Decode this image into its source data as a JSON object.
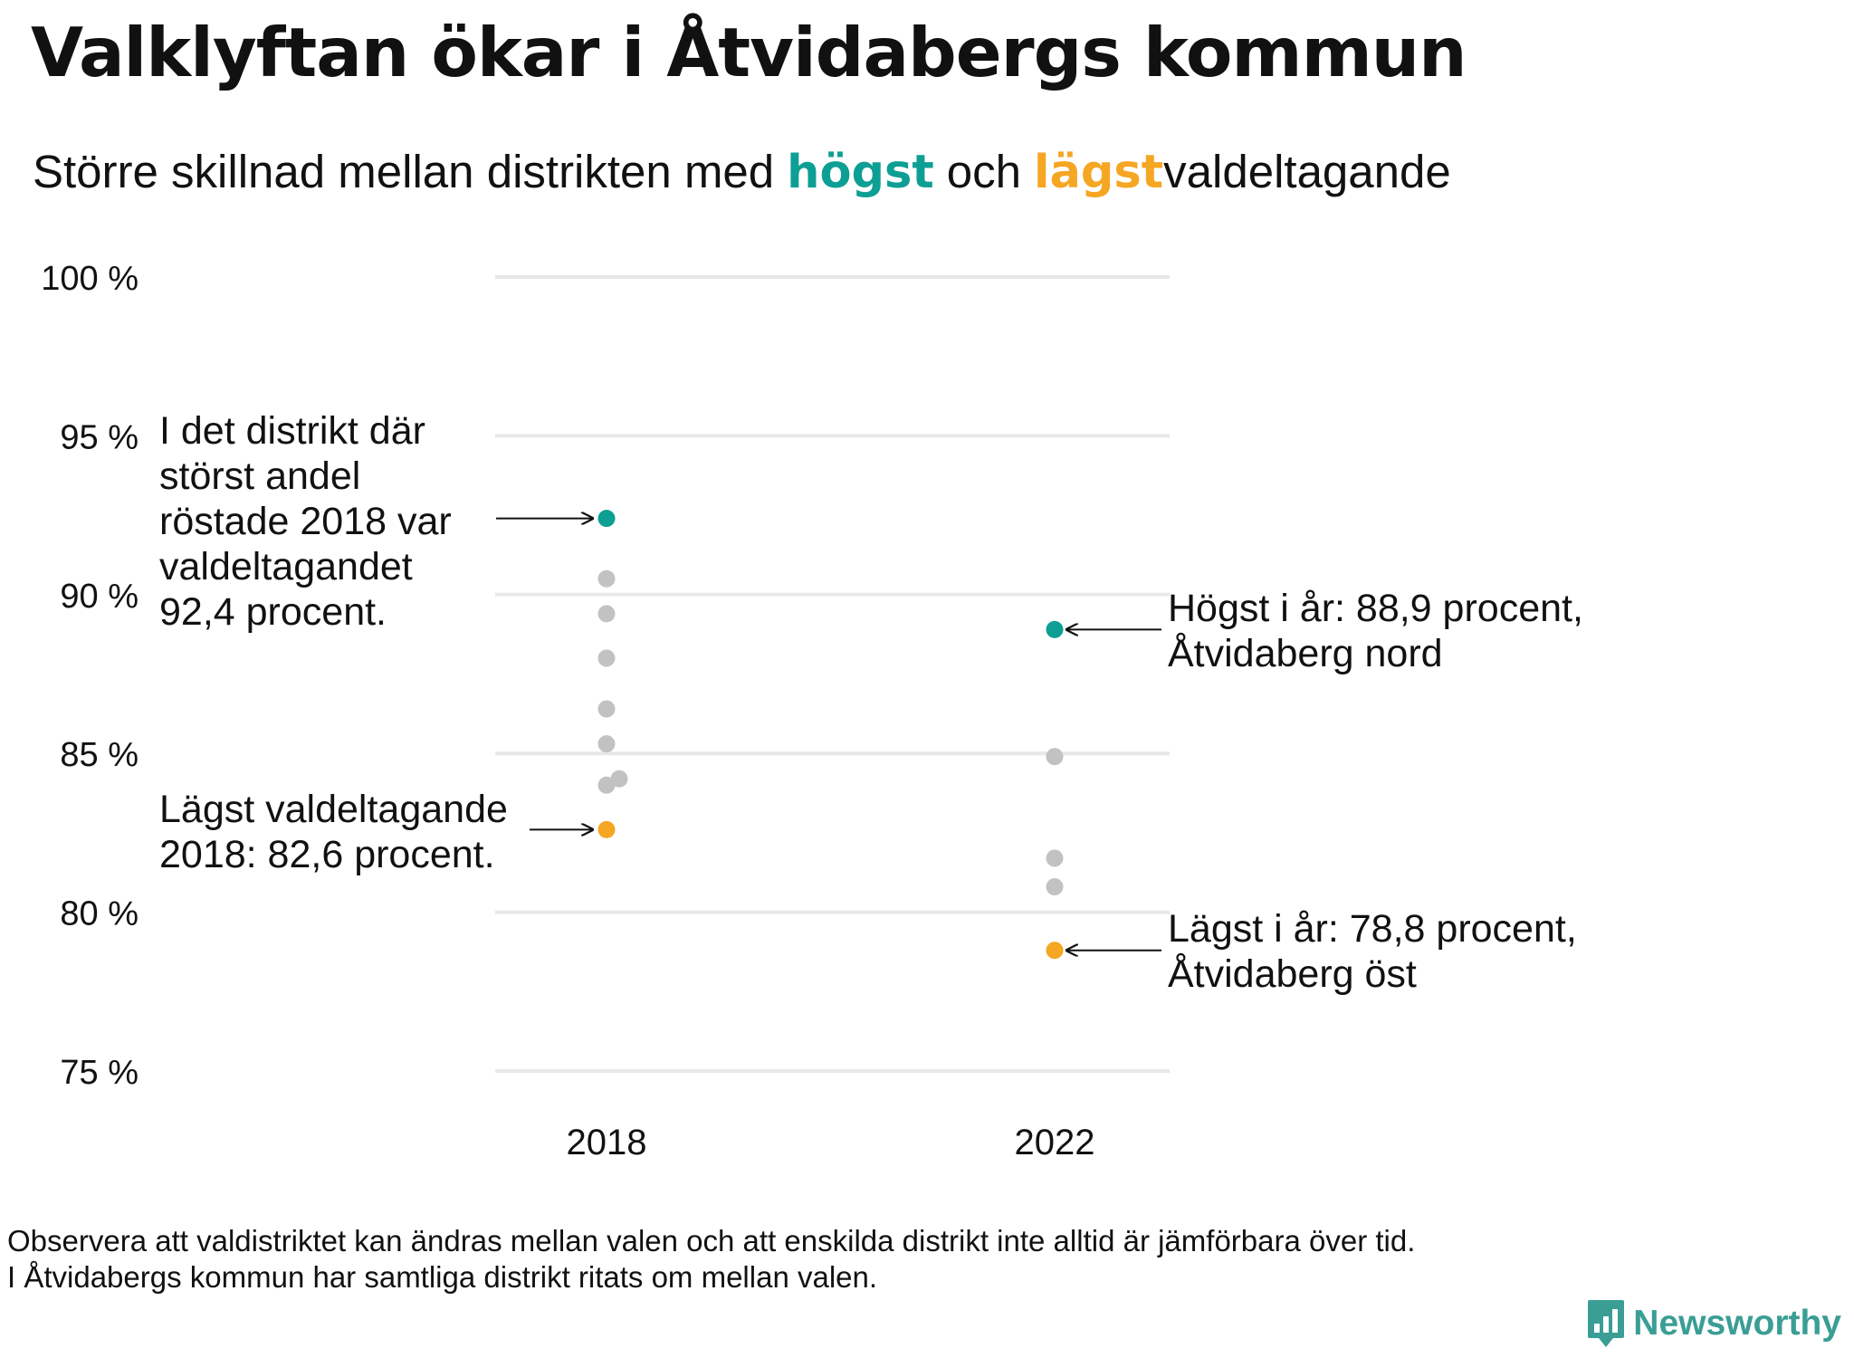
{
  "title": "Valklyftan ökar i Åtvidabergs kommun",
  "subtitle": {
    "part1": "Större  skillnad  mellan  distrikten  med",
    "highest_word": "högst",
    "mid": "och",
    "lowest_word": "lägst",
    "part2": "valdeltagande"
  },
  "colors": {
    "highest": "#0e9f94",
    "lowest": "#f5a623",
    "other": "#c2c2c2",
    "grid": "#e8e8e8"
  },
  "chart_data": {
    "type": "scatter",
    "ylim": [
      75,
      100
    ],
    "yticks": [
      {
        "value": 100,
        "label": "100 %"
      },
      {
        "value": 95,
        "label": "95 %"
      },
      {
        "value": 90,
        "label": "90 %"
      },
      {
        "value": 85,
        "label": "85 %"
      },
      {
        "value": 80,
        "label": "80 %"
      },
      {
        "value": 75,
        "label": "75 %"
      }
    ],
    "categories": [
      "2018",
      "2022"
    ],
    "points": [
      {
        "year": "2018",
        "value": 92.4,
        "group": "highest"
      },
      {
        "year": "2018",
        "value": 90.5,
        "group": "other"
      },
      {
        "year": "2018",
        "value": 89.4,
        "group": "other"
      },
      {
        "year": "2018",
        "value": 88.0,
        "group": "other"
      },
      {
        "year": "2018",
        "value": 86.4,
        "group": "other"
      },
      {
        "year": "2018",
        "value": 85.3,
        "group": "other"
      },
      {
        "year": "2018",
        "value": 84.2,
        "group": "other",
        "jitter": 1
      },
      {
        "year": "2018",
        "value": 84.0,
        "group": "other"
      },
      {
        "year": "2018",
        "value": 82.6,
        "group": "lowest"
      },
      {
        "year": "2022",
        "value": 88.9,
        "group": "highest"
      },
      {
        "year": "2022",
        "value": 84.9,
        "group": "other"
      },
      {
        "year": "2022",
        "value": 81.7,
        "group": "other"
      },
      {
        "year": "2022",
        "value": 80.8,
        "group": "other"
      },
      {
        "year": "2022",
        "value": 78.8,
        "group": "lowest"
      }
    ],
    "annotations": [
      {
        "id": "high-2018",
        "year": "2018",
        "value": 92.4,
        "side": "left",
        "lines": [
          "I det distrikt där",
          "störst andel",
          "röstade 2018 var",
          "valdeltagandet",
          "92,4 procent."
        ]
      },
      {
        "id": "low-2018",
        "year": "2018",
        "value": 82.6,
        "side": "left",
        "lines": [
          "Lägst valdeltagande",
          "2018: 82,6 procent."
        ]
      },
      {
        "id": "high-2022",
        "year": "2022",
        "value": 88.9,
        "side": "right",
        "lines": [
          "Högst i år: 88,9 procent,",
          "Åtvidaberg nord"
        ]
      },
      {
        "id": "low-2022",
        "year": "2022",
        "value": 78.8,
        "side": "right",
        "lines": [
          "Lägst i år: 78,8 procent,",
          "Åtvidaberg öst"
        ]
      }
    ]
  },
  "footnote": {
    "line1": "Observera att valdistriktet kan ändras mellan valen och att enskilda distrikt inte alltid är jämförbara över tid.",
    "line2": "I Åtvidabergs kommun har samtliga distrikt ritats om mellan valen."
  },
  "brand": {
    "name": "Newsworthy",
    "icon": "newsworthy-logo-icon"
  }
}
